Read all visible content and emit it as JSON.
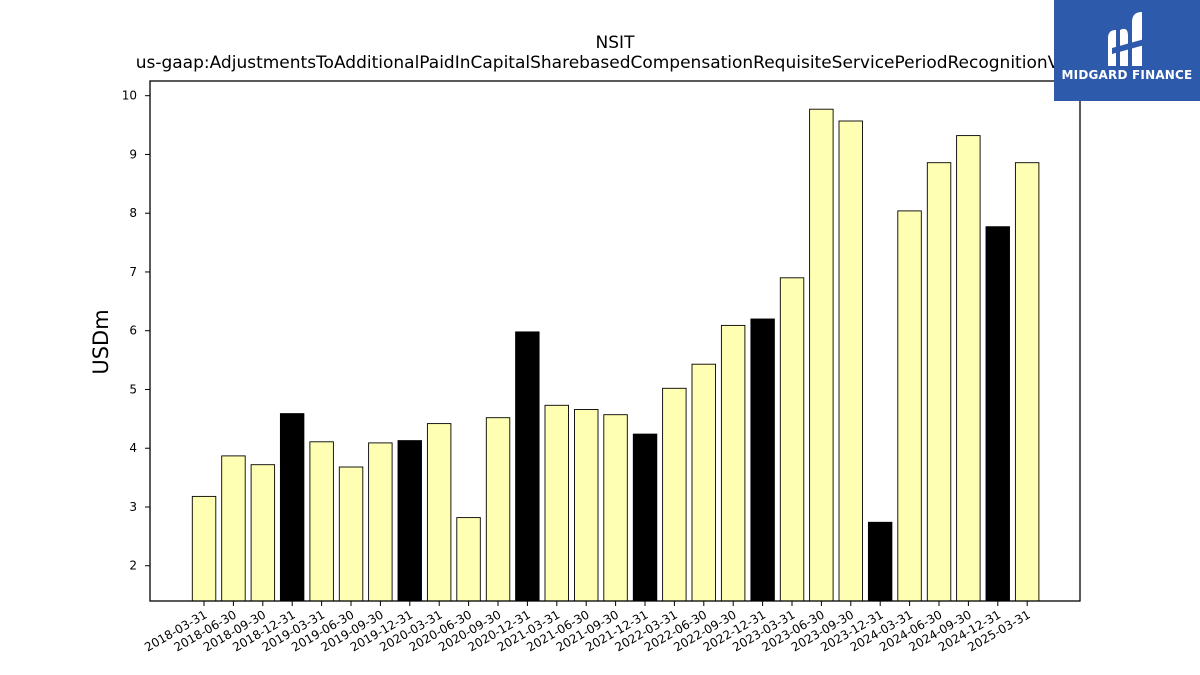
{
  "logo": {
    "text": "MIDGARD FINANCE",
    "background": "#2d5aab"
  },
  "chart_data": {
    "type": "bar",
    "title": "NSIT",
    "subtitle": "us-gaap:AdjustmentsToAdditionalPaidInCapitalSharebasedCompensationRequisiteServicePeriodRecognitionValue",
    "xlabel": "",
    "ylabel": "USDm",
    "ylim": [
      1.4,
      10.25
    ],
    "yticks": [
      2,
      3,
      4,
      5,
      6,
      7,
      8,
      9,
      10
    ],
    "grid": false,
    "colors": {
      "quarter": "#ffffb3",
      "year_end": "#000000",
      "edge": "#000000"
    },
    "categories": [
      "2018-03-31",
      "2018-06-30",
      "2018-09-30",
      "2018-12-31",
      "2019-03-31",
      "2019-06-30",
      "2019-09-30",
      "2019-12-31",
      "2020-03-31",
      "2020-06-30",
      "2020-09-30",
      "2020-12-31",
      "2021-03-31",
      "2021-06-30",
      "2021-09-30",
      "2021-12-31",
      "2022-03-31",
      "2022-06-30",
      "2022-09-30",
      "2022-12-31",
      "2023-03-31",
      "2023-06-30",
      "2023-09-30",
      "2023-12-31",
      "2024-03-31",
      "2024-06-30",
      "2024-09-30",
      "2024-12-31",
      "2025-03-31"
    ],
    "values": [
      3.18,
      3.87,
      3.72,
      4.59,
      4.11,
      3.68,
      4.09,
      4.13,
      4.42,
      2.82,
      4.52,
      5.98,
      4.73,
      4.66,
      4.57,
      4.24,
      5.02,
      5.43,
      6.09,
      6.2,
      6.9,
      9.77,
      9.57,
      2.74,
      8.04,
      8.86,
      9.32,
      7.77,
      8.86
    ],
    "highlight": [
      false,
      false,
      false,
      true,
      false,
      false,
      false,
      true,
      false,
      false,
      false,
      true,
      false,
      false,
      false,
      true,
      false,
      false,
      false,
      true,
      false,
      false,
      false,
      true,
      false,
      false,
      false,
      true,
      false
    ]
  }
}
